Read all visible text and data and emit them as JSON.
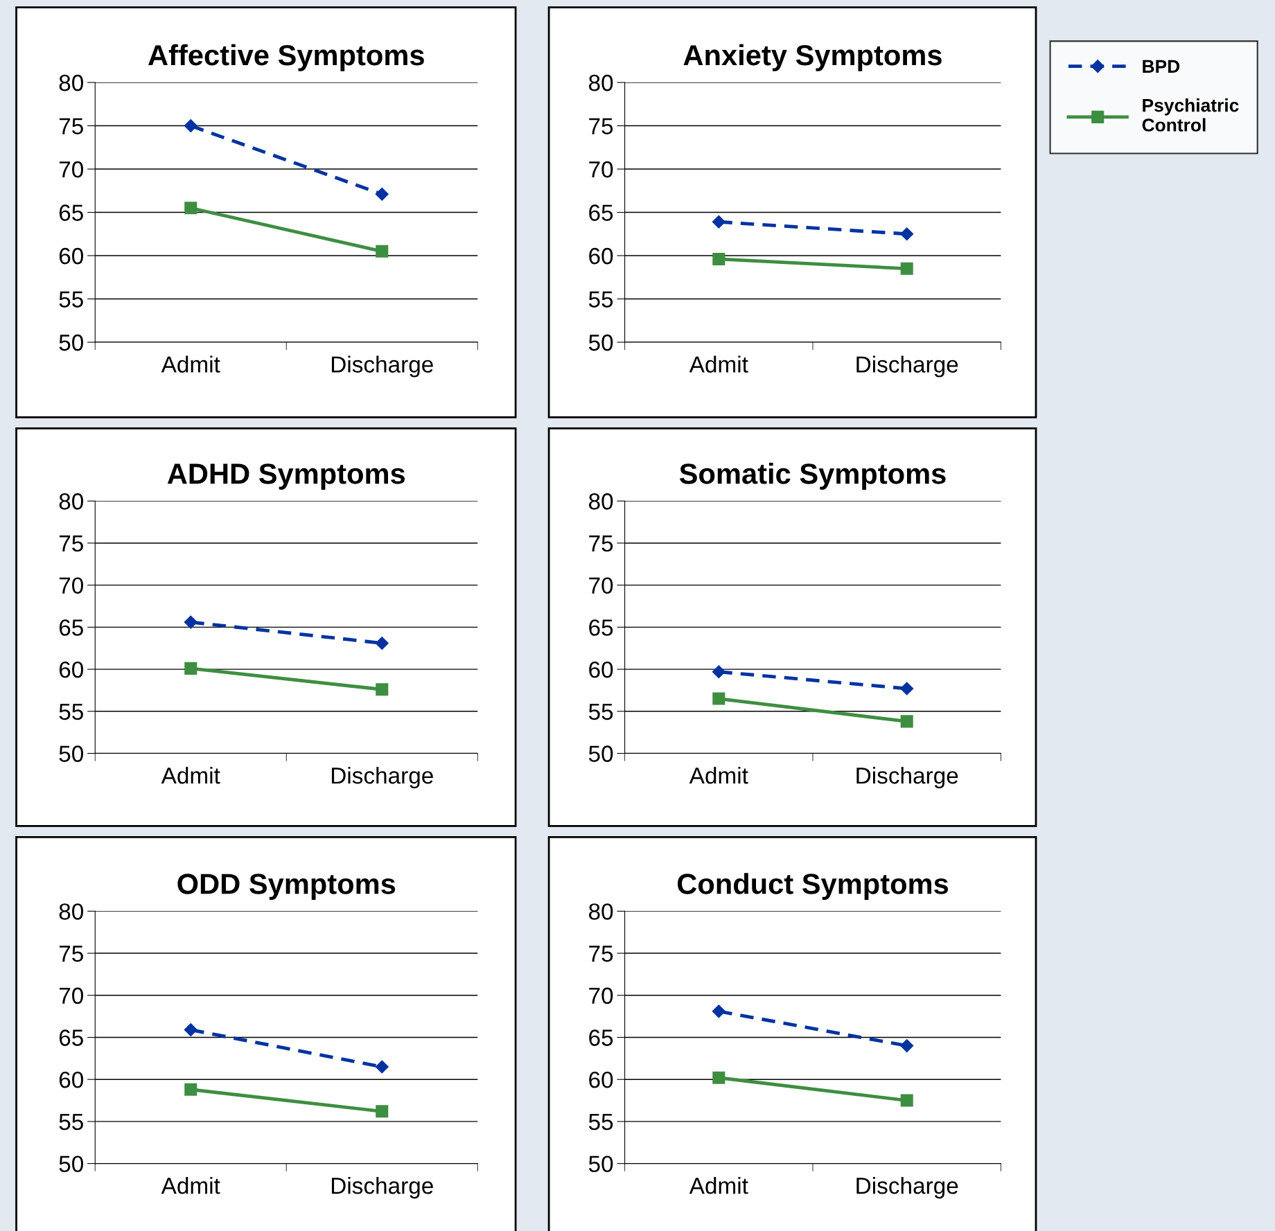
{
  "chart_data": [
    {
      "type": "line",
      "title": "Affective Symptoms",
      "categories": [
        "Admit",
        "Discharge"
      ],
      "ylim": [
        50,
        80
      ],
      "yticks": [
        50,
        55,
        60,
        65,
        70,
        75,
        80
      ],
      "grid": "y",
      "legend": "right",
      "series": [
        {
          "name": "BPD",
          "color": "#0033a0",
          "values": [
            75.0,
            67.1
          ],
          "marker": "diamond",
          "line_style": "dashed"
        },
        {
          "name": "Psychiatric Control",
          "color": "#3e8e41",
          "values": [
            65.5,
            60.5
          ],
          "marker": "square",
          "line_style": "solid"
        }
      ]
    },
    {
      "type": "line",
      "title": "Anxiety Symptoms",
      "categories": [
        "Admit",
        "Discharge"
      ],
      "ylim": [
        50,
        80
      ],
      "yticks": [
        50,
        55,
        60,
        65,
        70,
        75,
        80
      ],
      "grid": "y",
      "series": [
        {
          "color": "#0033a0",
          "values": [
            63.9,
            62.5
          ],
          "marker": "diamond",
          "line_style": "dashed"
        },
        {
          "color": "#3e8e41",
          "values": [
            59.6,
            58.5
          ],
          "marker": "square",
          "line_style": "solid"
        }
      ]
    },
    {
      "type": "line",
      "title": "ADHD Symptoms",
      "categories": [
        "Admit",
        "Discharge"
      ],
      "ylim": [
        50,
        80
      ],
      "yticks": [
        50,
        55,
        60,
        65,
        70,
        75,
        80
      ],
      "grid": "y",
      "series": [
        {
          "color": "#0033a0",
          "values": [
            65.6,
            63.1
          ],
          "marker": "diamond",
          "line_style": "dashed"
        },
        {
          "color": "#3e8e41",
          "values": [
            60.1,
            57.6
          ],
          "marker": "square",
          "line_style": "solid"
        }
      ]
    },
    {
      "type": "line",
      "title": "Somatic Symptoms",
      "categories": [
        "Admit",
        "Discharge"
      ],
      "ylim": [
        50,
        80
      ],
      "yticks": [
        50,
        55,
        60,
        65,
        70,
        75,
        80
      ],
      "grid": "y",
      "series": [
        {
          "color": "#0033a0",
          "values": [
            59.7,
            57.7
          ],
          "marker": "diamond",
          "line_style": "dashed"
        },
        {
          "color": "#3e8e41",
          "values": [
            56.5,
            53.8
          ],
          "marker": "square",
          "line_style": "solid"
        }
      ]
    },
    {
      "type": "line",
      "title": "ODD Symptoms",
      "categories": [
        "Admit",
        "Discharge"
      ],
      "ylim": [
        50,
        80
      ],
      "yticks": [
        50,
        55,
        60,
        65,
        70,
        75,
        80
      ],
      "grid": "y",
      "series": [
        {
          "color": "#0033a0",
          "values": [
            65.9,
            61.5
          ],
          "marker": "diamond",
          "line_style": "dashed"
        },
        {
          "color": "#3e8e41",
          "values": [
            58.8,
            56.2
          ],
          "marker": "square",
          "line_style": "solid"
        }
      ]
    },
    {
      "type": "line",
      "title": "Conduct Symptoms",
      "categories": [
        "Admit",
        "Discharge"
      ],
      "ylim": [
        50,
        80
      ],
      "yticks": [
        50,
        55,
        60,
        65,
        70,
        75,
        80
      ],
      "grid": "y",
      "series": [
        {
          "color": "#0033a0",
          "values": [
            68.1,
            64.0
          ],
          "marker": "diamond",
          "line_style": "dashed"
        },
        {
          "color": "#3e8e41",
          "values": [
            60.2,
            57.5
          ],
          "marker": "square",
          "line_style": "solid"
        }
      ]
    }
  ]
}
